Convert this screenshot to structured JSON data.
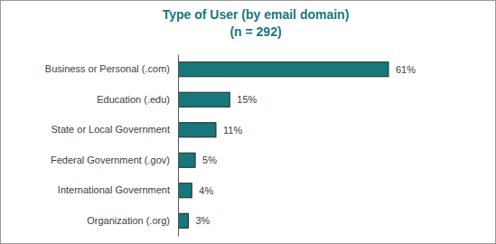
{
  "chart_data": {
    "type": "bar",
    "title": "Type of User (by email domain)",
    "subtitle": "(n = 292)",
    "categories": [
      "Business or Personal (.com)",
      "Education (.edu)",
      "State or Local Government",
      "Federal Government (.gov)",
      "International Government",
      "Organization (.org)"
    ],
    "values": [
      61,
      15,
      11,
      5,
      4,
      3
    ],
    "value_labels": [
      "61%",
      "15%",
      "11%",
      "5%",
      "4%",
      "3%"
    ],
    "color": "#17777b",
    "orientation": "horizontal",
    "data_labels": true,
    "tick_labels": "y",
    "xlim": [
      0,
      61
    ]
  }
}
